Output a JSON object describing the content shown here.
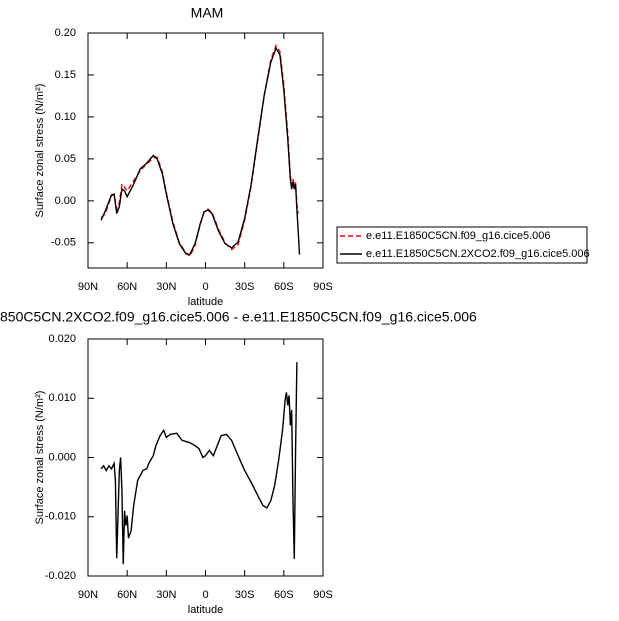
{
  "chart_data": [
    {
      "type": "line",
      "title": "MAM",
      "xlabel": "latitude",
      "ylabel": "Surface zonal stress (N/m²)",
      "x": [
        80,
        77,
        72,
        70,
        68,
        66,
        64,
        62,
        60,
        55,
        50,
        45,
        40,
        37,
        33,
        30,
        25,
        20,
        15,
        12,
        8,
        4,
        1,
        -2,
        -5,
        -10,
        -15,
        -20,
        -25,
        -30,
        -35,
        -40,
        -45,
        -50,
        -54,
        -57,
        -60,
        -63,
        -65,
        -66,
        -67,
        -68,
        -69,
        -70,
        -71,
        -72
      ],
      "series": [
        {
          "name": "e.e11.E1850C5CN.f09_g16.cice5.006",
          "color": "#ff0000",
          "dashed": true,
          "values": [
            -0.02,
            -0.016,
            0.006,
            0.008,
            -0.01,
            -0.002,
            0.02,
            0.016,
            0.012,
            0.024,
            0.036,
            0.044,
            0.051,
            0.052,
            0.034,
            0.01,
            -0.025,
            -0.05,
            -0.062,
            -0.066,
            -0.053,
            -0.028,
            -0.012,
            -0.01,
            -0.014,
            -0.034,
            -0.05,
            -0.058,
            -0.052,
            -0.023,
            0.018,
            0.072,
            0.126,
            0.168,
            0.185,
            0.178,
            0.138,
            0.08,
            0.03,
            0.018,
            0.026,
            0.018,
            0.022,
            -0.004,
            -0.015,
            null
          ]
        },
        {
          "name": "e.e11.E1850C5CN.2XCO2.f09_g16.cice5.006",
          "color": "#000000",
          "dashed": false,
          "values": [
            -0.023,
            -0.013,
            0.007,
            0.008,
            -0.015,
            -0.007,
            0.014,
            0.012,
            0.005,
            0.02,
            0.038,
            0.045,
            0.054,
            0.05,
            0.032,
            0.008,
            -0.027,
            -0.051,
            -0.063,
            -0.064,
            -0.051,
            -0.027,
            -0.013,
            -0.011,
            -0.015,
            -0.036,
            -0.051,
            -0.056,
            -0.049,
            -0.021,
            0.02,
            0.074,
            0.126,
            0.165,
            0.182,
            0.174,
            0.132,
            0.074,
            0.026,
            0.014,
            0.023,
            0.014,
            0.02,
            -0.01,
            -0.036,
            -0.064
          ]
        }
      ],
      "xlim": [
        90,
        -90
      ],
      "xticks": [
        {
          "value": 90,
          "label": "90N"
        },
        {
          "value": 60,
          "label": "60N"
        },
        {
          "value": 30,
          "label": "30N"
        },
        0,
        {
          "value": -30,
          "label": "30S"
        },
        {
          "value": -60,
          "label": "60S"
        },
        {
          "value": -90,
          "label": "90S"
        }
      ],
      "ylim": [
        -0.08,
        0.2
      ],
      "yticks": [
        {
          "value": 0.2,
          "label": "0.20"
        },
        0.15,
        {
          "value": 0.1,
          "label": "0.10"
        },
        0.05,
        {
          "value": 0,
          "label": "0.00"
        },
        -0.05
      ],
      "legend": "right"
    },
    {
      "type": "line",
      "title": "850C5CN.2XCO2.f09_g16.cice5.006 - e.e11.E1850C5CN.f09_g16.cice5.006",
      "xlabel": "latitude",
      "ylabel": "Surface zonal stress (N/m²)",
      "x": [
        80,
        78,
        76,
        74,
        72,
        70,
        69,
        68,
        66,
        65,
        64,
        63,
        62,
        61,
        60,
        59,
        57,
        55,
        52,
        48,
        45,
        43,
        40,
        38,
        35,
        32,
        30,
        27,
        22,
        18,
        12,
        8,
        5,
        2,
        0,
        -3,
        -6,
        -9,
        -12,
        -16,
        -20,
        -25,
        -30,
        -35,
        -40,
        -44,
        -47,
        -50,
        -53,
        -56,
        -59,
        -61,
        -62,
        -63,
        -64,
        -65,
        -66,
        -67,
        -68,
        -69,
        -70
      ],
      "series": [
        {
          "color": "#000000",
          "dashed": false,
          "values": [
            -0.0019,
            -0.0014,
            -0.0022,
            -0.0014,
            -0.0019,
            -0.001,
            -0.0039,
            -0.017,
            -0.0022,
            0.0,
            -0.0056,
            -0.018,
            -0.009,
            -0.0115,
            -0.0098,
            -0.0136,
            -0.0124,
            -0.0081,
            -0.0039,
            -0.0022,
            -0.0019,
            -0.0008,
            0.0003,
            0.002,
            0.0036,
            0.0046,
            0.0034,
            0.0039,
            0.0041,
            0.0029,
            0.0025,
            0.002,
            0.0015,
            0.0,
            0.0003,
            0.0012,
            0.0003,
            0.002,
            0.0037,
            0.0039,
            0.0029,
            0.0003,
            -0.0022,
            -0.0042,
            -0.0064,
            -0.0081,
            -0.0085,
            -0.0073,
            -0.0047,
            -0.0005,
            0.0046,
            0.0097,
            0.011,
            0.0088,
            0.0105,
            0.0054,
            0.008,
            -0.0073,
            -0.0171,
            0.0012,
            0.0161
          ]
        }
      ],
      "xlim": [
        90,
        -90
      ],
      "xticks": [
        {
          "value": 90,
          "label": "90N"
        },
        {
          "value": 60,
          "label": "60N"
        },
        {
          "value": 30,
          "label": "30N"
        },
        0,
        {
          "value": -30,
          "label": "30S"
        },
        {
          "value": -60,
          "label": "60S"
        },
        {
          "value": -90,
          "label": "90S"
        }
      ],
      "ylim": [
        -0.02,
        0.02
      ],
      "yticks": [
        {
          "value": 0.02,
          "label": "0.020"
        },
        {
          "value": 0.01,
          "label": "0.010"
        },
        {
          "value": 0,
          "label": "0.000"
        },
        {
          "value": -0.01,
          "label": "-0.010"
        },
        {
          "value": -0.02,
          "label": "-0.020"
        }
      ]
    }
  ]
}
